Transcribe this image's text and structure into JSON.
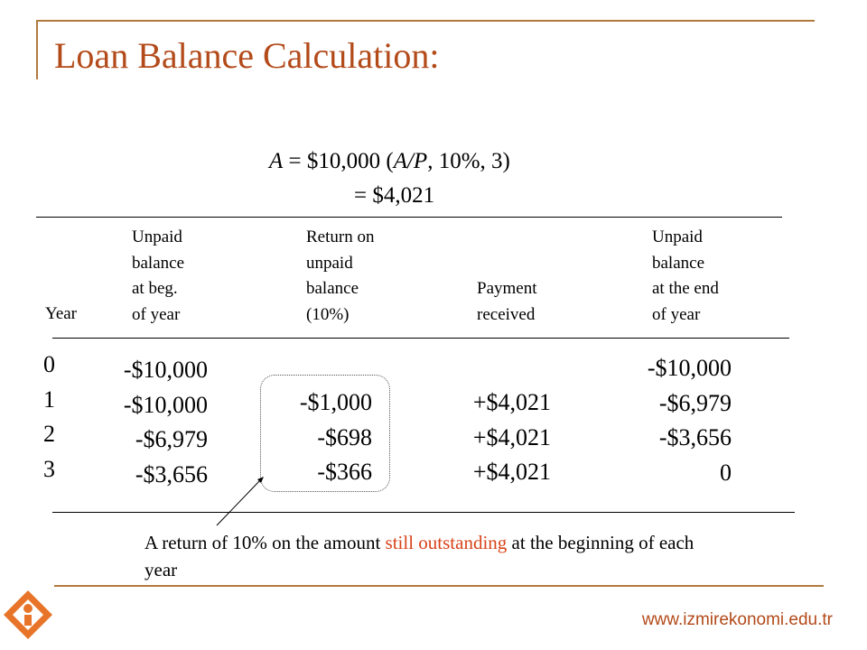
{
  "title": "Loan Balance Calculation:",
  "formula": {
    "line1_A": "A",
    "line1_rest_a": " = $10,000 (",
    "line1_AP": "A/P",
    "line1_rest_b": ", 10%, 3)",
    "line2": "= $4,021"
  },
  "table": {
    "headers": {
      "year": "Year",
      "unpaid_beg": [
        "Unpaid",
        "balance",
        "at beg.",
        "of year"
      ],
      "return": [
        "Return on",
        "unpaid",
        "balance",
        "(10%)"
      ],
      "payment": [
        "Payment",
        "received"
      ],
      "unpaid_end": [
        "Unpaid",
        "balance",
        "at the end",
        "of year"
      ]
    },
    "years": [
      "0",
      "1",
      "2",
      "3"
    ],
    "unpaid_beg": [
      "-$10,000",
      "-$10,000",
      "-$6,979",
      "-$3,656"
    ],
    "return": [
      "-$1,000",
      "-$698",
      "-$366"
    ],
    "payment": [
      "+$4,021",
      "+$4,021",
      "+$4,021"
    ],
    "unpaid_end": [
      "-$10,000",
      "-$6,979",
      "-$3,656",
      "0"
    ]
  },
  "note": {
    "pre": "A return of 10% on the amount ",
    "highlight": "still outstanding",
    "post": " at the beginning of each year"
  },
  "footer": {
    "url": "www.izmirekonomi.edu.tr"
  },
  "colors": {
    "accent": "#b34a1a",
    "highlight": "#d8431a",
    "rule": "#b07a3f"
  }
}
